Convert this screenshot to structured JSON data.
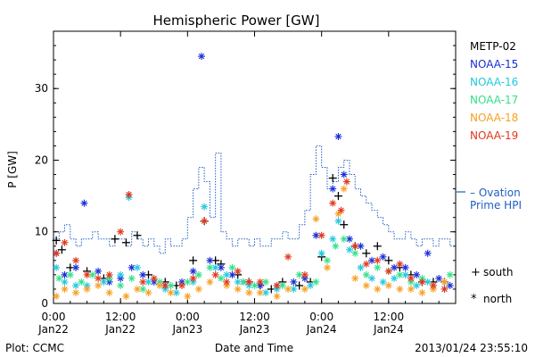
{
  "chart_data": {
    "type": "scatter",
    "title": "Hemispheric Power [GW]",
    "ylabel": "P [GW]",
    "xlabel": "Date and Time",
    "footer_left": "Plot: CCMC",
    "footer_right": "2013/01/24 23:55:10",
    "xlim_hours": [
      0,
      72
    ],
    "ylim": [
      0,
      38
    ],
    "yticks": [
      0,
      10,
      20,
      30
    ],
    "xticks": [
      {
        "h": 0,
        "time": "0:00",
        "date": "Jan22"
      },
      {
        "h": 12,
        "time": "12:00",
        "date": "Jan22"
      },
      {
        "h": 24,
        "time": "0:00",
        "date": "Jan23"
      },
      {
        "h": 36,
        "time": "12:00",
        "date": "Jan23"
      },
      {
        "h": 48,
        "time": "0:00",
        "date": "Jan24"
      },
      {
        "h": 60,
        "time": "12:00",
        "date": "Jan24"
      }
    ],
    "legend": [
      {
        "name": "METP-02",
        "color": "#000000"
      },
      {
        "name": "NOAA-15",
        "color": "#1a2ed8"
      },
      {
        "name": "NOAA-16",
        "color": "#22c8e0"
      },
      {
        "name": "NOAA-17",
        "color": "#33e08a"
      },
      {
        "name": "NOAA-18",
        "color": "#f7a023"
      },
      {
        "name": "NOAA-19",
        "color": "#e0381a"
      }
    ],
    "ovation_label": [
      "– Ovation",
      "Prime HPI"
    ],
    "ovation_color": "#1f5fc4",
    "marker_legend": [
      {
        "symbol": "+",
        "label": "south"
      },
      {
        "symbol": "*",
        "label": "north"
      }
    ],
    "ovation_hpi": {
      "x": [
        0,
        1,
        2,
        3,
        4,
        5,
        6,
        7,
        8,
        9,
        10,
        11,
        12,
        13,
        14,
        15,
        16,
        17,
        18,
        19,
        20,
        21,
        22,
        23,
        24,
        25,
        26,
        27,
        28,
        29,
        30,
        31,
        32,
        33,
        34,
        35,
        36,
        37,
        38,
        39,
        40,
        41,
        42,
        43,
        44,
        45,
        46,
        47,
        48,
        49,
        50,
        51,
        52,
        53,
        54,
        55,
        56,
        57,
        58,
        59,
        60,
        61,
        62,
        63,
        64,
        65,
        66,
        67,
        68,
        69,
        70,
        71,
        72
      ],
      "y": [
        9,
        10,
        11,
        9,
        8,
        9,
        9,
        10,
        9,
        9,
        8,
        9,
        9,
        8,
        10,
        9,
        8,
        9,
        8,
        7,
        9,
        8,
        8,
        9,
        12,
        16,
        19,
        17,
        12,
        21,
        10,
        9,
        8,
        9,
        9,
        8,
        9,
        8,
        8,
        9,
        9,
        10,
        9,
        9,
        11,
        13,
        18,
        22,
        19,
        16,
        17,
        19,
        20,
        18,
        16,
        15,
        14,
        13,
        12,
        11,
        10,
        9,
        9,
        10,
        9,
        8,
        9,
        9,
        8,
        9,
        9,
        8,
        8
      ]
    },
    "series": [
      {
        "name": "METP-02",
        "marker": "+",
        "points": [
          [
            0.5,
            8.8
          ],
          [
            1.5,
            7.5
          ],
          [
            3,
            5
          ],
          [
            6,
            4.5
          ],
          [
            9,
            3.5
          ],
          [
            11,
            9
          ],
          [
            13,
            8.5
          ],
          [
            15,
            9.5
          ],
          [
            17,
            4
          ],
          [
            20,
            3
          ],
          [
            22,
            2.5
          ],
          [
            25,
            6
          ],
          [
            27,
            11.5
          ],
          [
            29,
            6
          ],
          [
            30,
            5.5
          ],
          [
            33,
            4
          ],
          [
            35,
            3
          ],
          [
            37,
            2.5
          ],
          [
            39,
            2
          ],
          [
            41,
            3
          ],
          [
            44,
            2.5
          ],
          [
            46,
            3
          ],
          [
            48,
            6.5
          ],
          [
            50,
            17.5
          ],
          [
            51,
            15
          ],
          [
            52,
            11
          ],
          [
            54,
            8
          ],
          [
            56,
            7
          ],
          [
            58,
            8
          ],
          [
            60,
            6
          ],
          [
            62,
            5
          ],
          [
            64,
            4
          ],
          [
            66,
            3
          ],
          [
            68,
            3
          ],
          [
            70,
            3
          ]
        ]
      },
      {
        "name": "NOAA-15",
        "marker": "*",
        "points": [
          [
            0.5,
            7
          ],
          [
            2,
            4
          ],
          [
            4,
            5
          ],
          [
            5.5,
            14
          ],
          [
            8,
            4.5
          ],
          [
            10,
            3
          ],
          [
            12,
            3.5
          ],
          [
            14,
            5
          ],
          [
            16,
            4
          ],
          [
            18,
            3
          ],
          [
            20,
            2.5
          ],
          [
            23,
            3
          ],
          [
            25,
            4.5
          ],
          [
            26.5,
            34.5
          ],
          [
            28,
            6
          ],
          [
            30,
            5
          ],
          [
            32,
            4
          ],
          [
            34,
            3
          ],
          [
            37,
            2.5
          ],
          [
            40,
            2.5
          ],
          [
            43,
            3
          ],
          [
            45,
            3.5
          ],
          [
            47,
            9.5
          ],
          [
            50,
            16
          ],
          [
            51,
            23.3
          ],
          [
            52,
            18
          ],
          [
            53,
            9
          ],
          [
            55,
            8
          ],
          [
            57,
            6
          ],
          [
            59,
            6.5
          ],
          [
            61,
            5
          ],
          [
            63,
            5
          ],
          [
            65,
            4
          ],
          [
            67,
            7
          ],
          [
            69,
            3.5
          ],
          [
            71,
            2.5
          ]
        ]
      },
      {
        "name": "NOAA-16",
        "marker": "*",
        "points": [
          [
            0.5,
            5
          ],
          [
            2,
            3
          ],
          [
            4,
            2.5
          ],
          [
            6,
            2.5
          ],
          [
            9,
            3
          ],
          [
            12,
            4
          ],
          [
            13.5,
            14.8
          ],
          [
            15,
            5
          ],
          [
            17,
            3
          ],
          [
            20,
            2
          ],
          [
            22,
            1.5
          ],
          [
            25,
            3
          ],
          [
            27,
            13.5
          ],
          [
            29,
            5
          ],
          [
            31,
            4
          ],
          [
            33,
            3
          ],
          [
            35,
            2.5
          ],
          [
            38,
            1.5
          ],
          [
            40,
            2
          ],
          [
            43,
            2
          ],
          [
            46,
            2.5
          ],
          [
            48,
            7
          ],
          [
            50,
            9
          ],
          [
            51,
            11.5
          ],
          [
            53,
            7.5
          ],
          [
            55,
            5
          ],
          [
            57,
            3.5
          ],
          [
            59,
            3
          ],
          [
            61,
            3.5
          ],
          [
            63,
            4
          ],
          [
            65,
            2.5
          ],
          [
            67,
            3
          ],
          [
            70,
            2
          ]
        ]
      },
      {
        "name": "NOAA-17",
        "marker": "*",
        "points": [
          [
            1,
            3.5
          ],
          [
            3,
            4
          ],
          [
            5,
            3
          ],
          [
            7,
            4
          ],
          [
            10,
            3.5
          ],
          [
            12,
            2.5
          ],
          [
            14,
            3.5
          ],
          [
            16,
            2
          ],
          [
            19,
            3
          ],
          [
            21,
            2.5
          ],
          [
            24,
            3
          ],
          [
            26,
            4
          ],
          [
            28,
            5
          ],
          [
            30,
            3.5
          ],
          [
            32,
            5
          ],
          [
            34,
            3
          ],
          [
            36,
            2.5
          ],
          [
            38,
            3
          ],
          [
            41,
            2.5
          ],
          [
            44,
            4
          ],
          [
            47,
            3
          ],
          [
            49,
            6
          ],
          [
            50.5,
            8
          ],
          [
            52,
            9
          ],
          [
            54,
            7
          ],
          [
            56,
            4
          ],
          [
            58,
            5
          ],
          [
            60,
            4.5
          ],
          [
            62,
            4
          ],
          [
            64,
            3
          ],
          [
            66,
            3.5
          ],
          [
            68,
            2.5
          ],
          [
            71,
            4
          ]
        ]
      },
      {
        "name": "NOAA-18",
        "marker": "*",
        "points": [
          [
            0.5,
            1
          ],
          [
            2,
            2
          ],
          [
            4,
            1.5
          ],
          [
            6,
            2
          ],
          [
            8,
            2.5
          ],
          [
            10,
            1.5
          ],
          [
            13,
            1
          ],
          [
            15,
            2
          ],
          [
            17,
            1.5
          ],
          [
            19,
            2.5
          ],
          [
            21,
            1.5
          ],
          [
            24,
            1
          ],
          [
            26,
            2
          ],
          [
            28,
            3
          ],
          [
            31,
            2.5
          ],
          [
            33,
            2
          ],
          [
            35,
            1.5
          ],
          [
            37,
            1.5
          ],
          [
            40,
            1
          ],
          [
            42,
            2
          ],
          [
            45,
            2
          ],
          [
            47,
            11.8
          ],
          [
            49,
            5
          ],
          [
            51,
            12.5
          ],
          [
            52,
            16
          ],
          [
            54,
            3.5
          ],
          [
            56,
            2.5
          ],
          [
            58,
            2
          ],
          [
            60,
            2.5
          ],
          [
            62,
            2
          ],
          [
            64,
            2
          ],
          [
            66,
            1.5
          ],
          [
            68,
            2
          ],
          [
            70,
            3
          ]
        ]
      },
      {
        "name": "NOAA-19",
        "marker": "*",
        "points": [
          [
            0.5,
            7
          ],
          [
            2,
            8.5
          ],
          [
            4,
            6
          ],
          [
            6,
            4
          ],
          [
            8,
            3.5
          ],
          [
            10,
            4
          ],
          [
            12,
            10
          ],
          [
            13.5,
            15.2
          ],
          [
            16,
            3
          ],
          [
            18,
            3.5
          ],
          [
            20,
            2.5
          ],
          [
            23,
            2.5
          ],
          [
            25,
            3.5
          ],
          [
            27,
            11.5
          ],
          [
            29,
            4
          ],
          [
            31,
            3
          ],
          [
            33,
            4.5
          ],
          [
            35,
            3
          ],
          [
            37,
            3
          ],
          [
            40,
            2.5
          ],
          [
            42,
            6.5
          ],
          [
            45,
            4
          ],
          [
            48,
            9.5
          ],
          [
            50,
            14
          ],
          [
            51.5,
            13
          ],
          [
            52.5,
            17
          ],
          [
            54,
            8
          ],
          [
            56,
            5.5
          ],
          [
            58,
            6
          ],
          [
            60,
            4.5
          ],
          [
            62,
            5.5
          ],
          [
            64,
            3.5
          ],
          [
            66,
            3
          ],
          [
            68,
            2.5
          ],
          [
            70,
            2
          ]
        ]
      }
    ]
  }
}
